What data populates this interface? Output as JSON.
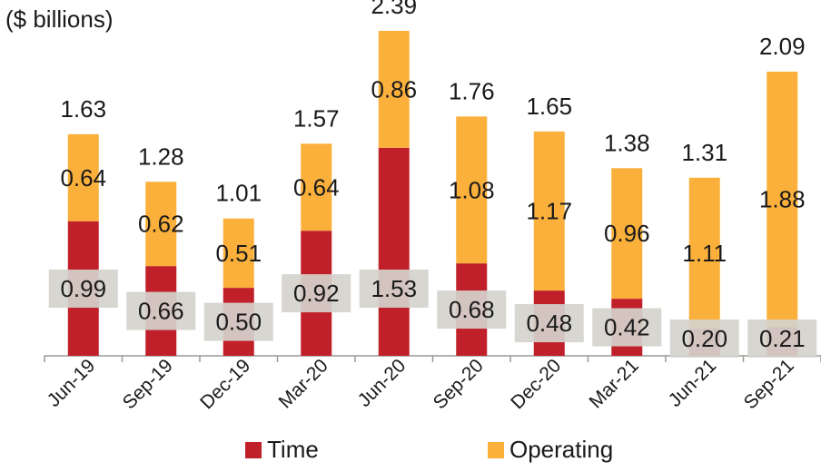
{
  "unit_label": "($ billions)",
  "chart_data": {
    "type": "bar",
    "stacked": true,
    "categories": [
      "Jun-19",
      "Sep-19",
      "Dec-19",
      "Mar-20",
      "Jun-20",
      "Sep-20",
      "Dec-20",
      "Mar-21",
      "Jun-21",
      "Sep-21"
    ],
    "series": [
      {
        "name": "Time",
        "color": "#C0202A",
        "values": [
          0.99,
          0.66,
          0.5,
          0.92,
          1.53,
          0.68,
          0.48,
          0.42,
          0.2,
          0.21
        ],
        "labels": [
          "0.99",
          "0.66",
          "0.50",
          "0.92",
          "1.53",
          "0.68",
          "0.48",
          "0.42",
          "0.20",
          "0.21"
        ]
      },
      {
        "name": "Operating",
        "color": "#FBB03B",
        "values": [
          0.64,
          0.62,
          0.51,
          0.64,
          0.86,
          1.08,
          1.17,
          0.96,
          1.11,
          1.88
        ],
        "labels": [
          "0.64",
          "0.62",
          "0.51",
          "0.64",
          "0.86",
          "1.08",
          "1.17",
          "0.96",
          "1.11",
          "1.88"
        ]
      }
    ],
    "totals": [
      1.63,
      1.28,
      1.01,
      1.57,
      2.39,
      1.76,
      1.65,
      1.38,
      1.31,
      2.09
    ],
    "total_labels": [
      "1.63",
      "1.28",
      "1.01",
      "1.57",
      "2.39",
      "1.76",
      "1.65",
      "1.38",
      "1.31",
      "2.09"
    ],
    "ylim": [
      0,
      2.39
    ],
    "legend_position": "bottom",
    "grid": false
  }
}
